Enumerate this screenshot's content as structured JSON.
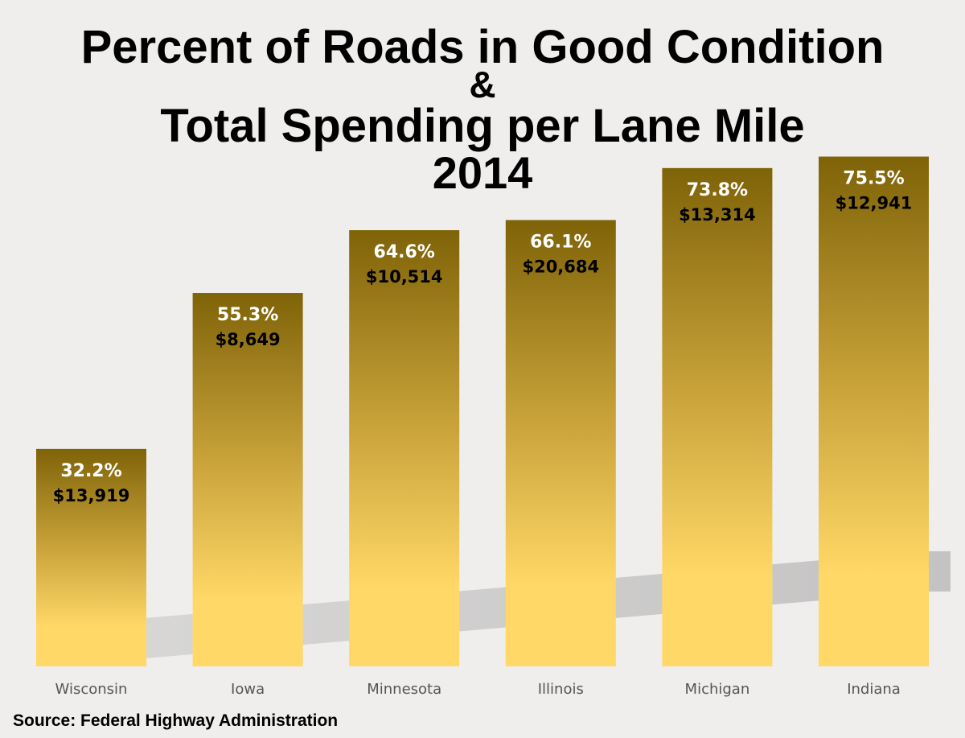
{
  "title": {
    "line1": "Percent of Roads in Good Condition",
    "line2": "&",
    "line3": "Total Spending per Lane Mile",
    "line4": "2014"
  },
  "source": "Source: Federal Highway Administration",
  "colors": {
    "bar_top": "#7f6308",
    "bar_mid": "#c9a33a",
    "bar_bottom": "#ffd867",
    "shadow": "#c4c3c3",
    "percent_label": "#ffffff",
    "spending_label": "#000000",
    "axis_label": "#555555"
  },
  "chart_data": {
    "type": "bar",
    "title": "Percent of Roads in Good Condition & Total Spending per Lane Mile 2014",
    "categories": [
      "Wisconsin",
      "Iowa",
      "Minnesota",
      "Illinois",
      "Michigan",
      "Indiana"
    ],
    "series": [
      {
        "name": "Percent of Roads in Good Condition",
        "values": [
          32.2,
          55.3,
          64.6,
          66.1,
          73.8,
          75.5
        ],
        "labels": [
          "32.2%",
          "55.3%",
          "64.6%",
          "66.1%",
          "73.8%",
          "75.5%"
        ]
      },
      {
        "name": "Total Spending per Lane Mile",
        "values": [
          13919,
          8649,
          10514,
          20684,
          13314,
          12941
        ],
        "labels": [
          "$13,919",
          "$8,649",
          "$10,514",
          "$20,684",
          "$13,314",
          "$12,941"
        ]
      }
    ],
    "xlabel": "",
    "ylabel": "",
    "ylim": [
      0,
      100
    ],
    "grid": false,
    "legend": "none"
  }
}
